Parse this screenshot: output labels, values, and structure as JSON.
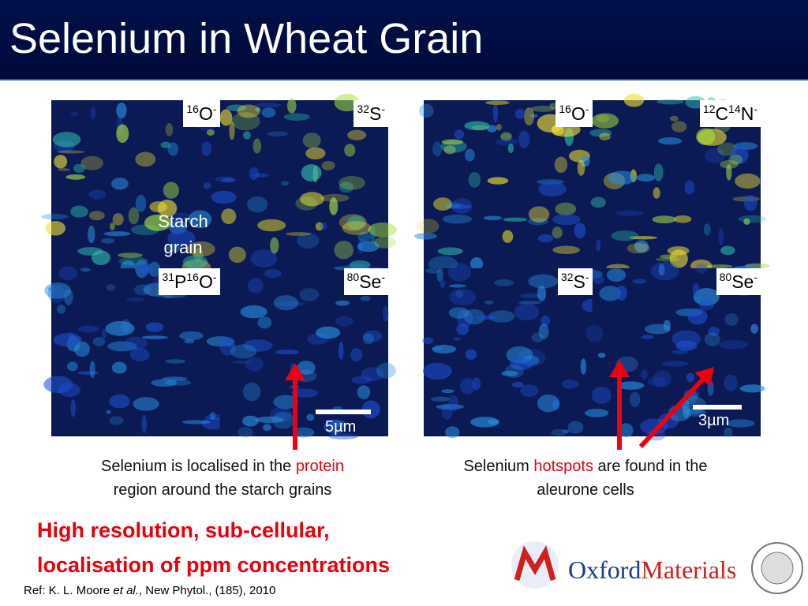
{
  "header": {
    "title": "Selenium in Wheat Grain"
  },
  "left_panel": {
    "tiles": [
      {
        "label": [
          {
            "sup": "16"
          },
          {
            "base": "O"
          },
          {
            "sup": "-"
          }
        ]
      },
      {
        "label": [
          {
            "sup": "32"
          },
          {
            "base": "S"
          },
          {
            "sup": "-"
          }
        ]
      },
      {
        "label": [
          {
            "sup": "31"
          },
          {
            "base": "P"
          },
          {
            "sup": "16"
          },
          {
            "base": "O"
          },
          {
            "sup": "-"
          }
        ]
      },
      {
        "label": [
          {
            "sup": "80"
          },
          {
            "base": "Se"
          },
          {
            "sup": "-"
          }
        ]
      }
    ],
    "annotation": [
      "Starch",
      "grain"
    ],
    "scale_bar": "5µm",
    "caption": {
      "line1": "Selenium is localised in the ",
      "highlight": "protein",
      "line2": "region around the starch grains"
    }
  },
  "right_panel": {
    "tiles": [
      {
        "label": [
          {
            "sup": "16"
          },
          {
            "base": "O"
          },
          {
            "sup": "-"
          }
        ]
      },
      {
        "label": [
          {
            "sup": "12"
          },
          {
            "base": "C"
          },
          {
            "sup": "14"
          },
          {
            "base": "N"
          },
          {
            "sup": "-"
          }
        ]
      },
      {
        "label": [
          {
            "sup": "32"
          },
          {
            "base": "S"
          },
          {
            "sup": "-"
          }
        ]
      },
      {
        "label": [
          {
            "sup": "80"
          },
          {
            "base": "Se"
          },
          {
            "sup": "-"
          }
        ]
      }
    ],
    "scale_bar": "3µm",
    "caption": {
      "line1_start": "Selenium ",
      "highlight": "hotspots",
      "line1_end": " are found in the",
      "line2": "aleurone cells"
    }
  },
  "conclusion": [
    "High resolution, sub-cellular,",
    "localisation of ppm concentrations"
  ],
  "reference": {
    "start": "Ref: K. L. Moore ",
    "italic": "et al.",
    "end": ", New Phytol., (185), 2010"
  },
  "logo": {
    "oxford": "Oxford",
    "materials": "Materials"
  }
}
